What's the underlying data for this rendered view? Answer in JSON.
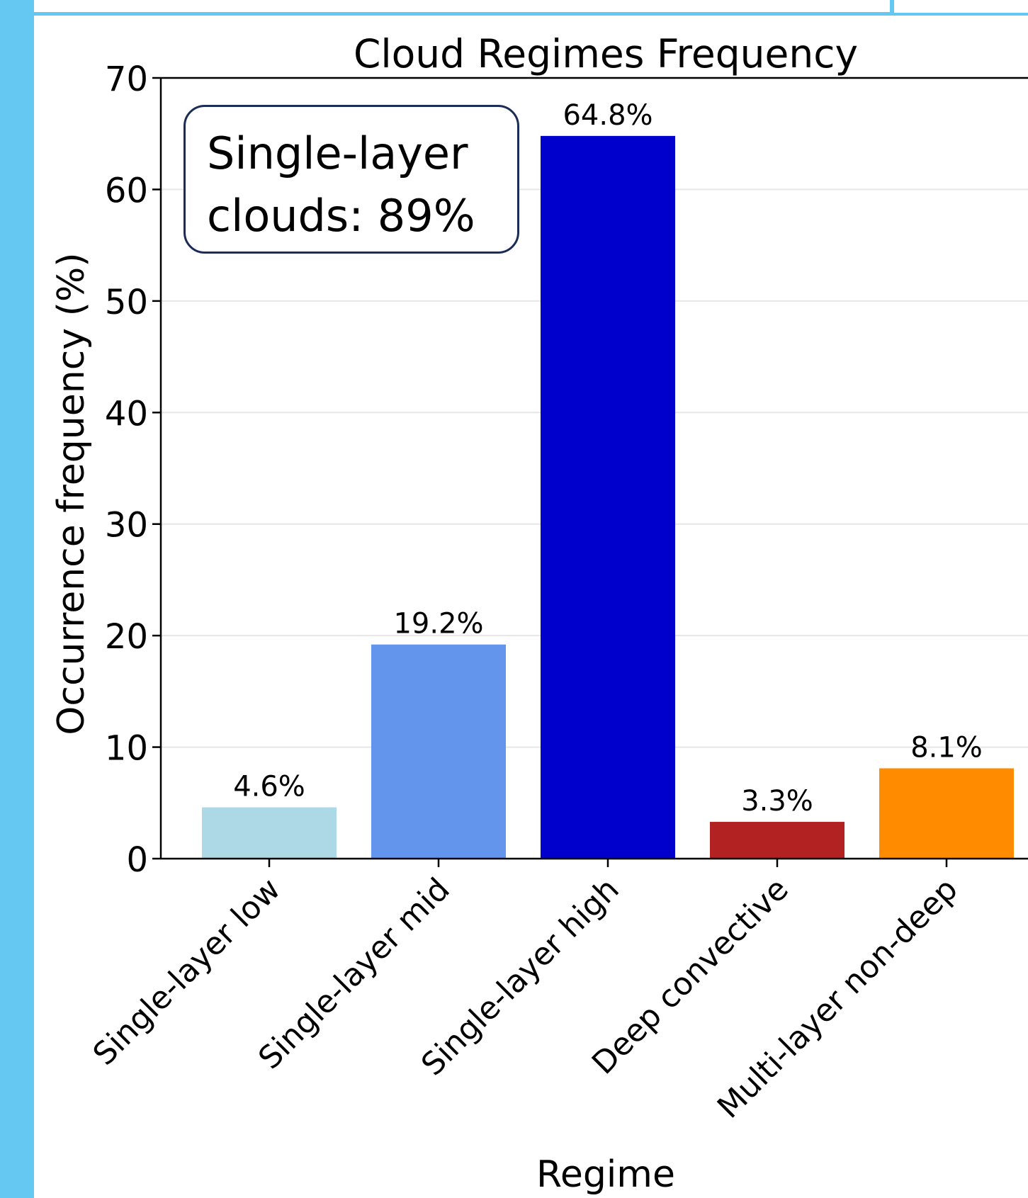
{
  "frame": {
    "accent_color": "#64c8f2"
  },
  "chart_data": {
    "type": "bar",
    "title": "Cloud Regimes Frequency",
    "xlabel": "Regime",
    "ylabel": "Occurrence frequency (%)",
    "categories": [
      "Single-layer low",
      "Single-layer mid",
      "Single-layer high",
      "Deep convective",
      "Multi-layer non-deep"
    ],
    "values": [
      4.6,
      19.2,
      64.8,
      3.3,
      8.1
    ],
    "value_labels": [
      "4.6%",
      "19.2%",
      "64.8%",
      "3.3%",
      "8.1%"
    ],
    "colors": [
      "#add8e6",
      "#6495ed",
      "#0000cd",
      "#b22222",
      "#ff8c00"
    ],
    "ylim": [
      0,
      70
    ],
    "yticks": [
      0,
      10,
      20,
      30,
      40,
      50,
      60,
      70
    ],
    "grid": "horizontal",
    "legend": "none"
  },
  "annotation": {
    "line1": "Single-layer",
    "line2": "clouds: 89%"
  }
}
